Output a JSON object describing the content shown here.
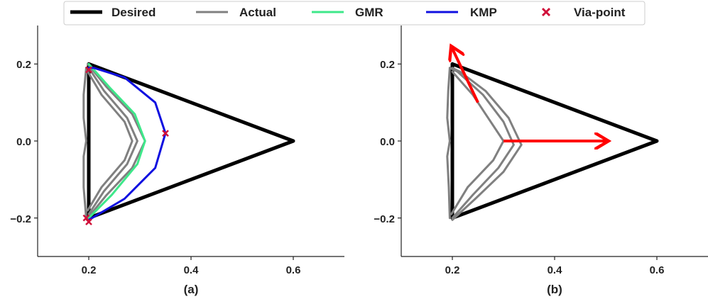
{
  "legend": {
    "entries": [
      {
        "key": "desired",
        "label": "Desired",
        "color": "#000000",
        "marker": "line-thick"
      },
      {
        "key": "actual",
        "label": "Actual",
        "color": "#808080",
        "marker": "line"
      },
      {
        "key": "gmr",
        "label": "GMR",
        "color": "#3ee88a",
        "marker": "line"
      },
      {
        "key": "kmp",
        "label": "KMP",
        "color": "#1010e0",
        "marker": "line"
      },
      {
        "key": "via",
        "label": "Via-point",
        "color": "#d0103a",
        "marker": "x"
      }
    ]
  },
  "chart_data": [
    {
      "type": "line",
      "subtitle": "(a)",
      "xlim": [
        0.1,
        0.7
      ],
      "ylim": [
        -0.3,
        0.3
      ],
      "xticks": [
        "0.2",
        "0.4",
        "0.6"
      ],
      "yticks": [
        "0.2",
        "0.0",
        "−0.2"
      ],
      "grid": false,
      "series": [
        {
          "name": "Desired",
          "color": "#000000",
          "x": [
            0.2,
            0.6,
            0.2,
            0.2
          ],
          "y": [
            0.2,
            0.0,
            -0.2,
            0.2
          ]
        },
        {
          "name": "Actual",
          "color": "#808080",
          "x": [
            0.198,
            0.225,
            0.27,
            0.285,
            0.27,
            0.225,
            0.198
          ],
          "y": [
            -0.18,
            -0.12,
            -0.05,
            0.0,
            0.05,
            0.12,
            0.18
          ]
        },
        {
          "name": "Actual",
          "color": "#808080",
          "x": [
            0.2,
            0.23,
            0.275,
            0.295,
            0.275,
            0.23,
            0.2
          ],
          "y": [
            -0.19,
            -0.13,
            -0.06,
            0.0,
            0.06,
            0.13,
            0.19
          ]
        },
        {
          "name": "Actual",
          "color": "#808080",
          "x": [
            0.198,
            0.235,
            0.285,
            0.31,
            0.285,
            0.235,
            0.198
          ],
          "y": [
            -0.2,
            -0.14,
            -0.07,
            0.0,
            0.07,
            0.14,
            0.2
          ]
        },
        {
          "name": "Actual",
          "color": "#808080",
          "x": [
            0.195,
            0.19,
            0.19,
            0.195,
            0.19,
            0.19,
            0.195
          ],
          "y": [
            -0.2,
            -0.12,
            -0.04,
            0.0,
            0.06,
            0.12,
            0.19
          ]
        },
        {
          "name": "GMR",
          "color": "#3ee88a",
          "x": [
            0.2,
            0.245,
            0.295,
            0.31,
            0.29,
            0.24,
            0.2
          ],
          "y": [
            -0.2,
            -0.14,
            -0.06,
            0.0,
            0.07,
            0.14,
            0.2
          ]
        },
        {
          "name": "KMP",
          "color": "#1010e0",
          "x": [
            0.2,
            0.27,
            0.33,
            0.35,
            0.33,
            0.27,
            0.21,
            0.2
          ],
          "y": [
            -0.205,
            -0.15,
            -0.07,
            0.02,
            0.1,
            0.165,
            0.19,
            0.19
          ]
        },
        {
          "name": "Via-point",
          "color": "#d0103a",
          "type": "scatter",
          "x": [
            0.2,
            0.35,
            0.195,
            0.2
          ],
          "y": [
            0.185,
            0.02,
            -0.2,
            -0.21
          ]
        }
      ]
    },
    {
      "type": "line",
      "subtitle": "(b)",
      "xlim": [
        0.1,
        0.7
      ],
      "ylim": [
        -0.3,
        0.3
      ],
      "xticks": [
        "0.2",
        "0.4",
        "0.6"
      ],
      "yticks": [
        "0.2",
        "0.0",
        "−0.2"
      ],
      "grid": false,
      "series": [
        {
          "name": "Desired",
          "color": "#000000",
          "x": [
            0.2,
            0.6,
            0.2,
            0.2
          ],
          "y": [
            0.2,
            0.0,
            -0.2,
            0.2
          ]
        },
        {
          "name": "Actual",
          "color": "#808080",
          "x": [
            0.2,
            0.24,
            0.29,
            0.32,
            0.3,
            0.26,
            0.21,
            0.195
          ],
          "y": [
            -0.2,
            -0.14,
            -0.07,
            -0.01,
            0.05,
            0.12,
            0.18,
            0.19
          ]
        },
        {
          "name": "Actual",
          "color": "#808080",
          "x": [
            0.2,
            0.245,
            0.3,
            0.335,
            0.31,
            0.265,
            0.215,
            0.2
          ],
          "y": [
            -0.205,
            -0.15,
            -0.08,
            -0.01,
            0.06,
            0.13,
            0.18,
            0.19
          ]
        },
        {
          "name": "Actual",
          "color": "#808080",
          "x": [
            0.198,
            0.23,
            0.28,
            0.3,
            0.27,
            0.24,
            0.2
          ],
          "y": [
            -0.19,
            -0.12,
            -0.05,
            0.0,
            0.06,
            0.12,
            0.18
          ]
        },
        {
          "name": "Actual",
          "color": "#808080",
          "x": [
            0.195,
            0.193,
            0.19,
            0.195,
            0.19,
            0.192,
            0.195
          ],
          "y": [
            -0.2,
            -0.12,
            -0.04,
            0.0,
            0.06,
            0.13,
            0.19
          ]
        }
      ],
      "arrows": [
        {
          "x": [
            0.25,
            0.2
          ],
          "y": [
            0.1,
            0.24
          ],
          "color": "#ff0000"
        },
        {
          "x": [
            0.3,
            0.5
          ],
          "y": [
            0.0,
            0.0
          ],
          "color": "#ff0000"
        }
      ]
    }
  ]
}
